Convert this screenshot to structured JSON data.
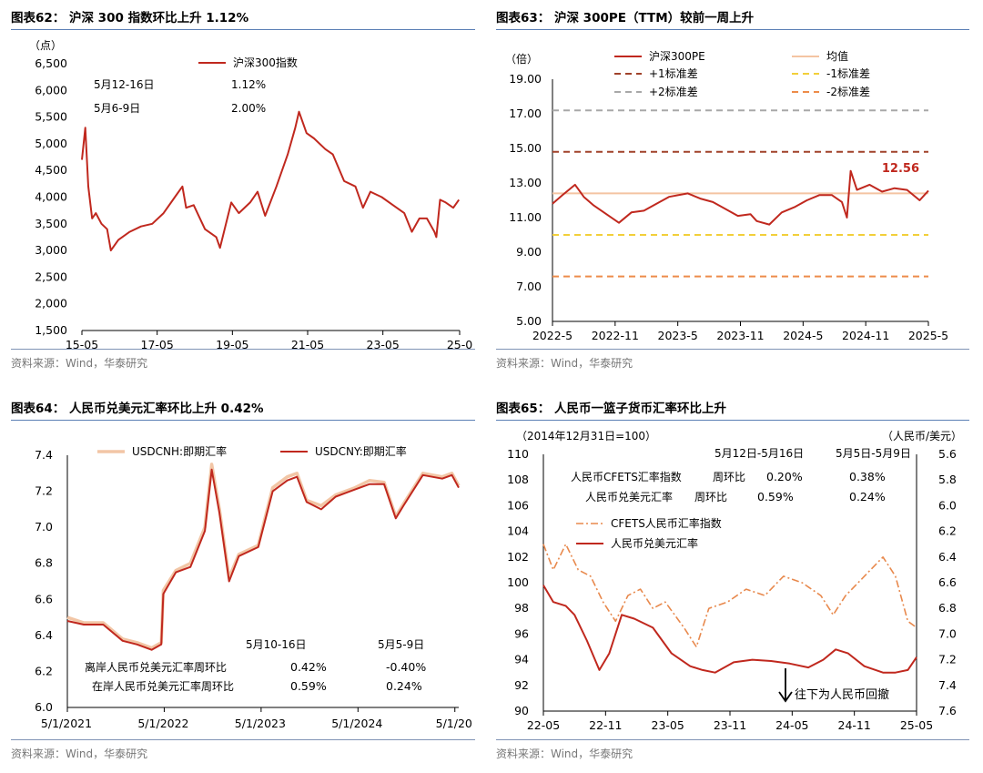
{
  "panels": [
    {
      "title": "图表62：  沪深 300 指数环比上升 1.12%",
      "source": "资料来源：Wind，华泰研究",
      "unit_label": "（点）",
      "chart_data": {
        "type": "line",
        "title": "图表62：  沪深 300 指数环比上升 1.12%",
        "xlabel": "",
        "ylabel": "（点）",
        "ylim": [
          1500,
          6500
        ],
        "yticks": [
          1500,
          2000,
          2500,
          3000,
          3500,
          4000,
          4500,
          5000,
          5500,
          6000,
          6500
        ],
        "ytick_labels": [
          "1,500",
          "2,000",
          "2,500",
          "3,000",
          "3,500",
          "4,000",
          "4,500",
          "5,000",
          "5,500",
          "6,000",
          "6,500"
        ],
        "xtick_labels": [
          "15-05",
          "17-05",
          "19-05",
          "21-05",
          "23-05",
          "25-0"
        ],
        "legend": "top-center",
        "annotations": [
          [
            "5月12-16日",
            "1.12%"
          ],
          [
            "5月6-9日",
            "2.00%"
          ]
        ],
        "series": [
          {
            "name": "沪深300指数",
            "color": "#c0281e",
            "x": [
              2015.33,
              2015.42,
              2015.5,
              2015.6,
              2015.7,
              2015.85,
              2016.0,
              2016.1,
              2016.3,
              2016.6,
              2016.9,
              2017.2,
              2017.5,
              2017.8,
              2018.0,
              2018.1,
              2018.3,
              2018.6,
              2018.9,
              2019.0,
              2019.3,
              2019.5,
              2019.8,
              2020.0,
              2020.2,
              2020.5,
              2020.8,
              2021.0,
              2021.1,
              2021.3,
              2021.5,
              2021.8,
              2022.0,
              2022.3,
              2022.6,
              2022.8,
              2023.0,
              2023.3,
              2023.6,
              2023.9,
              2024.1,
              2024.3,
              2024.5,
              2024.7,
              2024.75,
              2024.85,
              2025.0,
              2025.2,
              2025.35
            ],
            "y": [
              4700,
              5300,
              4200,
              3600,
              3700,
              3500,
              3400,
              3000,
              3200,
              3350,
              3450,
              3500,
              3700,
              4000,
              4200,
              3800,
              3850,
              3400,
              3250,
              3050,
              3900,
              3700,
              3900,
              4100,
              3650,
              4200,
              4800,
              5300,
              5600,
              5200,
              5100,
              4900,
              4800,
              4300,
              4200,
              3800,
              4100,
              4000,
              3850,
              3700,
              3350,
              3600,
              3600,
              3350,
              3250,
              3950,
              3900,
              3800,
              3950
            ]
          }
        ]
      }
    },
    {
      "title": "图表63：  沪深 300PE（TTM）较前一周上升",
      "source": "资料来源：Wind，华泰研究",
      "unit_label": "（倍）",
      "chart_data": {
        "type": "line",
        "title": "图表63：  沪深 300PE（TTM）较前一周上升",
        "xlabel": "",
        "ylabel": "（倍）",
        "ylim": [
          5,
          19
        ],
        "yticks": [
          5,
          7,
          9,
          11,
          13,
          15,
          17,
          19
        ],
        "ytick_labels": [
          "5.00",
          "7.00",
          "9.00",
          "11.00",
          "13.00",
          "15.00",
          "17.00",
          "19.00"
        ],
        "xtick_labels": [
          "2022-5",
          "2022-11",
          "2023-5",
          "2023-11",
          "2024-5",
          "2024-11",
          "2025-5"
        ],
        "legend": "top",
        "value_label": "12.56",
        "series": [
          {
            "name": "沪深300PE",
            "color": "#c0281e",
            "style": "solid",
            "x": [
              2022.37,
              2022.45,
              2022.55,
              2022.62,
              2022.7,
              2022.8,
              2022.9,
              2023.0,
              2023.1,
              2023.2,
              2023.3,
              2023.45,
              2023.55,
              2023.65,
              2023.75,
              2023.85,
              2023.95,
              2024.0,
              2024.1,
              2024.2,
              2024.3,
              2024.4,
              2024.5,
              2024.6,
              2024.68,
              2024.72,
              2024.75,
              2024.8,
              2024.9,
              2025.0,
              2025.1,
              2025.2,
              2025.3,
              2025.37
            ],
            "y": [
              11.8,
              12.3,
              12.9,
              12.2,
              11.7,
              11.2,
              10.7,
              11.3,
              11.4,
              11.8,
              12.2,
              12.4,
              12.1,
              11.9,
              11.5,
              11.1,
              11.2,
              10.8,
              10.6,
              11.3,
              11.6,
              12.0,
              12.3,
              12.3,
              11.9,
              11.0,
              13.7,
              12.6,
              12.9,
              12.5,
              12.7,
              12.6,
              12.0,
              12.56
            ]
          },
          {
            "name": "均值",
            "color": "#f4c4a2",
            "style": "solid",
            "x": [
              2022.37,
              2025.37
            ],
            "y": [
              12.4,
              12.4
            ]
          },
          {
            "name": "+1标准差",
            "color": "#a0422a",
            "style": "dashed",
            "x": [
              2022.37,
              2025.37
            ],
            "y": [
              14.8,
              14.8
            ]
          },
          {
            "name": "-1标准差",
            "color": "#f2cf3a",
            "style": "dashed",
            "x": [
              2022.37,
              2025.37
            ],
            "y": [
              10.0,
              10.0
            ]
          },
          {
            "name": "+2标准差",
            "color": "#a8a8a8",
            "style": "dashed",
            "x": [
              2022.37,
              2025.37
            ],
            "y": [
              17.2,
              17.2
            ]
          },
          {
            "name": "-2标准差",
            "color": "#ed8c4a",
            "style": "dashed",
            "x": [
              2022.37,
              2025.37
            ],
            "y": [
              7.6,
              7.6
            ]
          }
        ]
      }
    },
    {
      "title": "图表64：  人民币兑美元汇率环比上升 0.42%",
      "source": "资料来源：Wind，华泰研究",
      "chart_data": {
        "type": "line",
        "title": "图表64：  人民币兑美元汇率环比上升 0.42%",
        "xlabel": "",
        "ylabel": "",
        "ylim": [
          6.0,
          7.4
        ],
        "yticks": [
          6.0,
          6.2,
          6.4,
          6.6,
          6.8,
          7.0,
          7.2,
          7.4
        ],
        "ytick_labels": [
          "6.0",
          "6.2",
          "6.4",
          "6.6",
          "6.8",
          "7.0",
          "7.2",
          "7.4"
        ],
        "xtick_labels": [
          "5/1/2021",
          "5/1/2022",
          "5/1/2023",
          "5/1/2024",
          "5/1/20"
        ],
        "legend": "top",
        "table": {
          "header": [
            "5月10-16日",
            "5月5-9日"
          ],
          "rows": [
            [
              "离岸人民币兑美元汇率周环比",
              "0.42%",
              "-0.40%"
            ],
            [
              "在岸人民币兑美元汇率周环比",
              "0.59%",
              "0.24%"
            ]
          ]
        },
        "series": [
          {
            "name": "USDCNH:即期汇率",
            "color": "#f2c6a6",
            "x": [
              2021.33,
              2021.5,
              2021.7,
              2021.9,
              2022.05,
              2022.2,
              2022.3,
              2022.32,
              2022.45,
              2022.6,
              2022.75,
              2022.82,
              2022.9,
              2023.0,
              2023.1,
              2023.3,
              2023.45,
              2023.6,
              2023.7,
              2023.8,
              2023.95,
              2024.1,
              2024.3,
              2024.45,
              2024.6,
              2024.72,
              2024.8,
              2025.0,
              2025.2,
              2025.3,
              2025.37
            ],
            "y": [
              6.5,
              6.47,
              6.47,
              6.38,
              6.36,
              6.33,
              6.36,
              6.65,
              6.76,
              6.8,
              7.0,
              7.35,
              7.1,
              6.72,
              6.85,
              6.9,
              7.22,
              7.28,
              7.3,
              7.15,
              7.12,
              7.18,
              7.22,
              7.26,
              7.25,
              7.06,
              7.13,
              7.3,
              7.28,
              7.3,
              7.23
            ]
          },
          {
            "name": "USDCNY:即期汇率",
            "color": "#c0281e",
            "x": [
              2021.33,
              2021.5,
              2021.7,
              2021.9,
              2022.05,
              2022.2,
              2022.3,
              2022.32,
              2022.45,
              2022.6,
              2022.75,
              2022.82,
              2022.9,
              2023.0,
              2023.1,
              2023.3,
              2023.45,
              2023.6,
              2023.7,
              2023.8,
              2023.95,
              2024.1,
              2024.3,
              2024.45,
              2024.6,
              2024.72,
              2024.8,
              2025.0,
              2025.2,
              2025.3,
              2025.37
            ],
            "y": [
              6.48,
              6.46,
              6.46,
              6.37,
              6.35,
              6.32,
              6.35,
              6.63,
              6.75,
              6.78,
              6.98,
              7.32,
              7.08,
              6.7,
              6.84,
              6.89,
              7.2,
              7.26,
              7.28,
              7.14,
              7.1,
              7.17,
              7.21,
              7.24,
              7.24,
              7.05,
              7.12,
              7.29,
              7.27,
              7.29,
              7.22
            ]
          }
        ]
      }
    },
    {
      "title": "图表65：  人民币一篮子货币汇率环比上升",
      "source": "资料来源：Wind，华泰研究",
      "left_unit": "（2014年12月31日=100）",
      "right_unit": "（人民币/美元）",
      "arrow_note": "往下为人民币回撤",
      "chart_data": {
        "type": "line",
        "title": "图表65：  人民币一篮子货币汇率环比上升",
        "xlabel": "",
        "ylabel": "（2014年12月31日=100）",
        "ylim": [
          90,
          110
        ],
        "y2lim": [
          7.6,
          5.6
        ],
        "yticks": [
          90,
          92,
          94,
          96,
          98,
          100,
          102,
          104,
          106,
          108,
          110
        ],
        "y2tick_labels": [
          "5.6",
          "5.8",
          "6.0",
          "6.2",
          "6.4",
          "6.6",
          "6.8",
          "7.0",
          "7.2",
          "7.4",
          "7.6"
        ],
        "xtick_labels": [
          "22-05",
          "22-11",
          "23-05",
          "23-11",
          "24-05",
          "24-11",
          "25-05"
        ],
        "legend": "center-left",
        "table": {
          "header": [
            "5月12日-5月16日",
            "5月5日-5月9日"
          ],
          "rows": [
            [
              "人民币CFETS汇率指数",
              "周环比",
              "0.20%",
              "0.38%"
            ],
            [
              "人民币兑美元汇率",
              "周环比",
              "0.59%",
              "0.24%"
            ]
          ]
        },
        "series": [
          {
            "name": "CFETS人民币汇率指数",
            "color": "#e8894d",
            "style": "dashdot",
            "axis": "left",
            "x": [
              2022.37,
              2022.45,
              2022.55,
              2022.65,
              2022.75,
              2022.85,
              2022.95,
              2023.05,
              2023.15,
              2023.25,
              2023.35,
              2023.5,
              2023.6,
              2023.7,
              2023.85,
              2024.0,
              2024.15,
              2024.3,
              2024.45,
              2024.6,
              2024.7,
              2024.8,
              2024.9,
              2025.0,
              2025.1,
              2025.2,
              2025.3,
              2025.37
            ],
            "y": [
              103,
              101,
              103,
              101,
              100.5,
              98.5,
              97,
              99,
              99.5,
              98,
              98.5,
              96.5,
              95,
              98,
              98.5,
              99.5,
              99,
              100.5,
              100,
              99,
              97.5,
              99,
              100,
              101,
              102,
              100.5,
              97,
              96.5
            ]
          },
          {
            "name": "人民币兑美元汇率",
            "color": "#c0281e",
            "style": "solid",
            "axis": "right",
            "x": [
              2022.37,
              2022.45,
              2022.55,
              2022.62,
              2022.72,
              2022.82,
              2022.9,
              2023.0,
              2023.1,
              2023.25,
              2023.4,
              2023.55,
              2023.65,
              2023.75,
              2023.9,
              2024.05,
              2024.2,
              2024.35,
              2024.5,
              2024.62,
              2024.72,
              2024.82,
              2024.95,
              2025.1,
              2025.2,
              2025.3,
              2025.37
            ],
            "y": [
              6.62,
              6.75,
              6.78,
              6.85,
              7.05,
              7.28,
              7.15,
              6.85,
              6.88,
              6.95,
              7.15,
              7.25,
              7.28,
              7.3,
              7.22,
              7.2,
              7.21,
              7.23,
              7.26,
              7.2,
              7.12,
              7.15,
              7.25,
              7.3,
              7.3,
              7.28,
              7.18
            ]
          }
        ]
      }
    }
  ]
}
